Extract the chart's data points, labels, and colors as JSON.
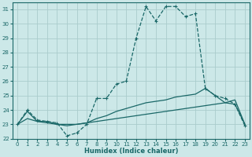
{
  "xlabel": "Humidex (Indice chaleur)",
  "bg_color": "#cce8e8",
  "grid_color": "#aacccc",
  "line_color": "#1a6868",
  "xlim": [
    -0.5,
    23.5
  ],
  "ylim": [
    22,
    31.5
  ],
  "yticks": [
    22,
    23,
    24,
    25,
    26,
    27,
    28,
    29,
    30,
    31
  ],
  "xticks": [
    0,
    1,
    2,
    3,
    4,
    5,
    6,
    7,
    8,
    9,
    10,
    11,
    12,
    13,
    14,
    15,
    16,
    17,
    18,
    19,
    20,
    21,
    22,
    23
  ],
  "line1_x": [
    0,
    1,
    2,
    3,
    4,
    5,
    6,
    7,
    8,
    9,
    10,
    11,
    12,
    13,
    14,
    15,
    16,
    17,
    18,
    19,
    20,
    21,
    22,
    23
  ],
  "line1_y": [
    23.0,
    24.0,
    23.3,
    23.2,
    23.1,
    22.2,
    22.4,
    23.0,
    24.8,
    24.8,
    25.8,
    26.0,
    29.0,
    31.2,
    30.2,
    31.2,
    31.2,
    30.5,
    30.7,
    25.5,
    25.0,
    24.8,
    24.4,
    22.9
  ],
  "line2_x": [
    0,
    1,
    2,
    3,
    4,
    5,
    6,
    7,
    8,
    9,
    10,
    11,
    12,
    13,
    14,
    15,
    16,
    17,
    18,
    19,
    20,
    21,
    22,
    23
  ],
  "line2_y": [
    23.0,
    23.4,
    23.2,
    23.1,
    23.0,
    22.9,
    23.0,
    23.1,
    23.2,
    23.3,
    23.4,
    23.5,
    23.6,
    23.7,
    23.8,
    23.9,
    24.0,
    24.1,
    24.2,
    24.3,
    24.4,
    24.5,
    24.7,
    23.0
  ],
  "line3_x": [
    0,
    1,
    2,
    3,
    4,
    5,
    6,
    7,
    8,
    9,
    10,
    11,
    12,
    13,
    14,
    15,
    16,
    17,
    18,
    19,
    20,
    21,
    22,
    23
  ],
  "line3_y": [
    23.0,
    23.9,
    23.2,
    23.2,
    23.0,
    23.0,
    23.0,
    23.1,
    23.4,
    23.6,
    23.9,
    24.1,
    24.3,
    24.5,
    24.6,
    24.7,
    24.9,
    25.0,
    25.1,
    25.5,
    25.0,
    24.5,
    24.4,
    23.0
  ]
}
